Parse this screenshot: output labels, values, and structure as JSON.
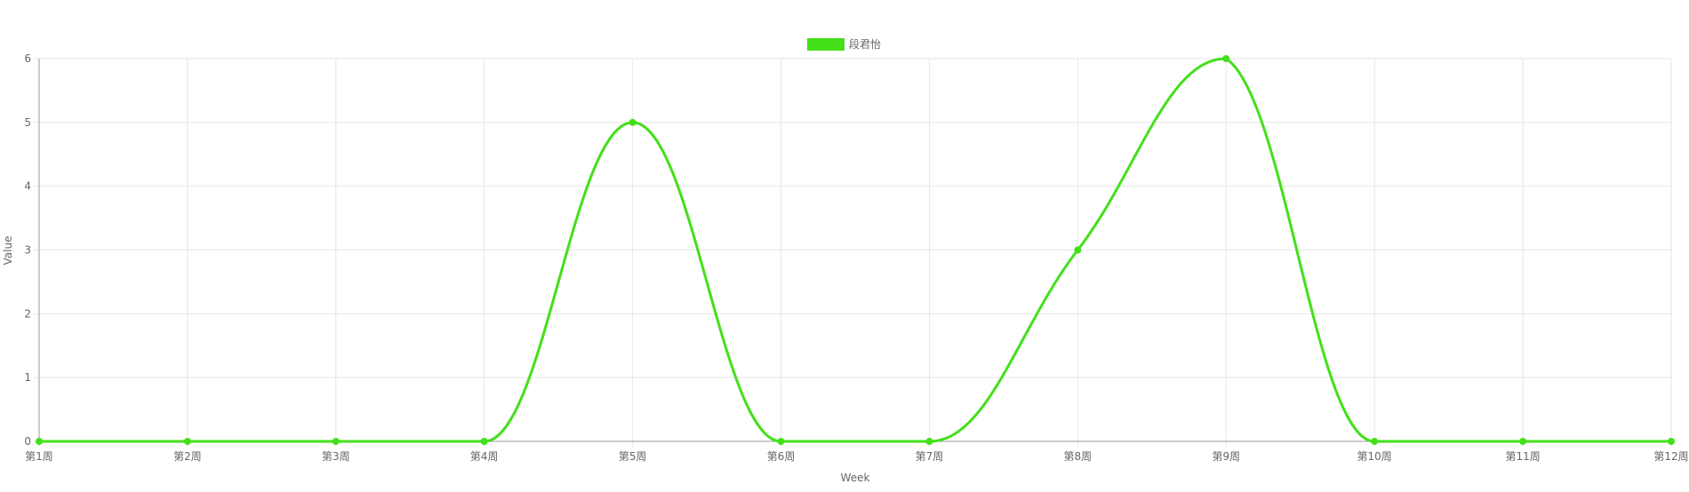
{
  "chart_data": {
    "type": "line",
    "categories": [
      "第1周",
      "第2周",
      "第3周",
      "第4周",
      "第5周",
      "第6周",
      "第7周",
      "第8周",
      "第9周",
      "第10周",
      "第11周",
      "第12周"
    ],
    "series": [
      {
        "name": "段君怡",
        "values": [
          0,
          0,
          0,
          0,
          5,
          0,
          0,
          3,
          6,
          0,
          0,
          0
        ],
        "color": "#43e01a"
      }
    ],
    "title": "",
    "xlabel": "Week",
    "ylabel": "Value",
    "ylim": [
      0,
      6
    ],
    "yticks": [
      0,
      1,
      2,
      3,
      4,
      5,
      6
    ],
    "grid": true,
    "legend_position": "top-center",
    "smooth": true
  },
  "colors": {
    "grid": "#e6e6e6",
    "axis": "#999999",
    "text": "#666666"
  }
}
